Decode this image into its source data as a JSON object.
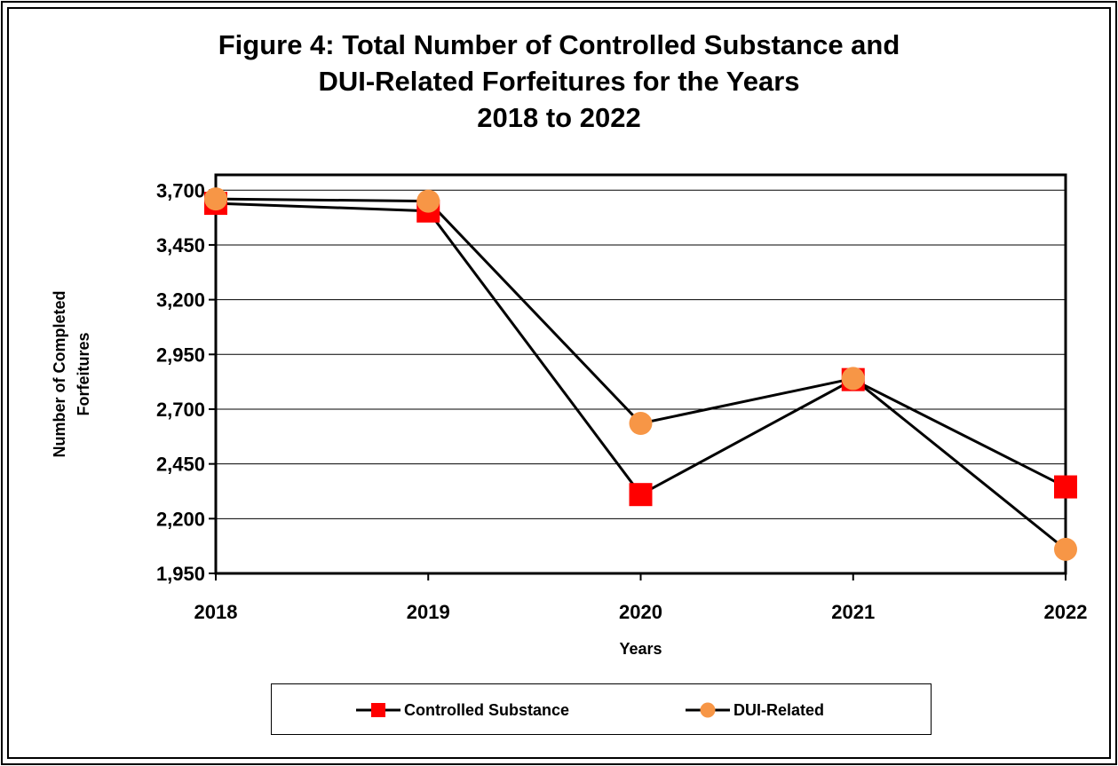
{
  "chart_data": {
    "type": "line",
    "title_lines": [
      "Figure 4:  Total Number of Controlled Substance and",
      "DUI-Related Forfeitures for the Years",
      "2018 to 2022"
    ],
    "xlabel": "Years",
    "ylabel_lines": [
      "Number of Completed",
      "Forfeitures"
    ],
    "categories": [
      "2018",
      "2019",
      "2020",
      "2021",
      "2022"
    ],
    "ylim": [
      1950,
      3700
    ],
    "yticks": [
      1950,
      2200,
      2450,
      2700,
      2950,
      3200,
      3450,
      3700
    ],
    "ytick_labels": [
      "1,950",
      "2,200",
      "2,450",
      "2,700",
      "2,950",
      "3,200",
      "3,450",
      "3,700"
    ],
    "grid": "horizontal",
    "legend_position": "bottom",
    "series": [
      {
        "name": "Controlled Substance",
        "values": [
          3640,
          3605,
          2310,
          2835,
          2345
        ],
        "marker": "square",
        "marker_color": "#ff0000",
        "line_color": "#000000"
      },
      {
        "name": "DUI-Related",
        "values": [
          3660,
          3650,
          2635,
          2840,
          2060
        ],
        "marker": "circle",
        "marker_color": "#f79646",
        "line_color": "#000000"
      }
    ]
  }
}
